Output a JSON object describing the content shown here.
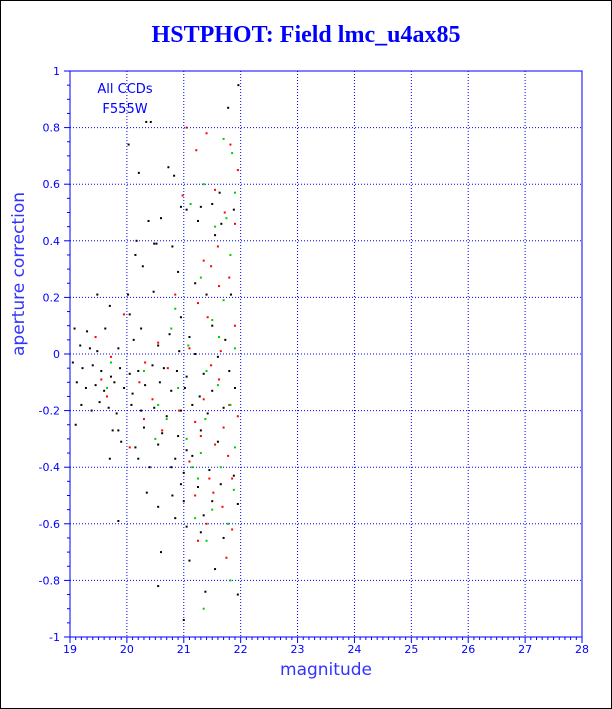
{
  "page": {
    "title": "HSTPHOT: Field lmc_u4ax85"
  },
  "chart_data": {
    "type": "scatter",
    "title": "HSTPHOT: Field lmc_u4ax85",
    "xlabel": "magnitude",
    "ylabel": "aperture correction",
    "xlim": [
      19,
      28
    ],
    "ylim": [
      -1,
      1
    ],
    "xticks": [
      "19",
      "20",
      "21",
      "22",
      "23",
      "24",
      "25",
      "26",
      "27",
      "28"
    ],
    "yticks": [
      "1",
      "0.8",
      "0.6",
      "0.4",
      "0.2",
      "0",
      "-0.2",
      "-0.4",
      "-0.6",
      "-0.8",
      "-1"
    ],
    "grid": "dotted",
    "annotation": [
      "All CCDs",
      "F555W"
    ],
    "colors": {
      "axis": "#0000ff",
      "grid": "#0000ff",
      "text": "#0000ff"
    },
    "series": [
      {
        "color": "#000000",
        "points": [
          [
            21.96,
            0.95
          ],
          [
            21.78,
            0.87
          ],
          [
            20.34,
            0.82
          ],
          [
            20.42,
            0.82
          ],
          [
            20.03,
            0.74
          ],
          [
            20.73,
            0.66
          ],
          [
            20.21,
            0.64
          ],
          [
            20.83,
            0.63
          ],
          [
            21.63,
            0.57
          ],
          [
            21.5,
            0.53
          ],
          [
            20.95,
            0.52
          ],
          [
            21.05,
            0.51
          ],
          [
            21.88,
            0.51
          ],
          [
            20.6,
            0.48
          ],
          [
            20.38,
            0.47
          ],
          [
            21.3,
            0.52
          ],
          [
            21.25,
            0.47
          ],
          [
            21.66,
            0.46
          ],
          [
            20.17,
            0.4
          ],
          [
            20.48,
            0.39
          ],
          [
            20.52,
            0.39
          ],
          [
            20.8,
            0.38
          ],
          [
            21.55,
            0.42
          ],
          [
            20.15,
            0.35
          ],
          [
            20.28,
            0.31
          ],
          [
            20.9,
            0.29
          ],
          [
            21.2,
            0.25
          ],
          [
            20.47,
            0.22
          ],
          [
            19.48,
            0.21
          ],
          [
            20.02,
            0.21
          ],
          [
            21.4,
            0.21
          ],
          [
            21.83,
            0.21
          ],
          [
            19.7,
            0.17
          ],
          [
            20.05,
            0.14
          ],
          [
            20.95,
            0.13
          ],
          [
            21.5,
            0.1
          ],
          [
            19.08,
            0.09
          ],
          [
            19.3,
            0.08
          ],
          [
            19.62,
            0.09
          ],
          [
            20.25,
            0.09
          ],
          [
            20.75,
            0.07
          ],
          [
            21.1,
            0.06
          ],
          [
            21.73,
            0.05
          ],
          [
            19.18,
            0.03
          ],
          [
            19.35,
            0.02
          ],
          [
            19.48,
            0.01
          ],
          [
            19.85,
            0.02
          ],
          [
            20.12,
            0.05
          ],
          [
            20.55,
            0.03
          ],
          [
            20.92,
            0.01
          ],
          [
            21.2,
            0.0
          ],
          [
            21.6,
            -0.01
          ],
          [
            19.05,
            -0.03
          ],
          [
            19.22,
            -0.05
          ],
          [
            19.4,
            -0.04
          ],
          [
            19.55,
            -0.06
          ],
          [
            19.72,
            -0.08
          ],
          [
            19.88,
            -0.05
          ],
          [
            20.05,
            -0.07
          ],
          [
            20.2,
            -0.06
          ],
          [
            20.45,
            -0.04
          ],
          [
            20.65,
            -0.05
          ],
          [
            20.88,
            -0.06
          ],
          [
            21.05,
            -0.08
          ],
          [
            21.35,
            -0.07
          ],
          [
            21.8,
            -0.06
          ],
          [
            19.12,
            -0.1
          ],
          [
            19.28,
            -0.12
          ],
          [
            19.45,
            -0.11
          ],
          [
            19.6,
            -0.13
          ],
          [
            19.78,
            -0.1
          ],
          [
            19.95,
            -0.12
          ],
          [
            20.1,
            -0.14
          ],
          [
            20.32,
            -0.11
          ],
          [
            20.58,
            -0.1
          ],
          [
            20.78,
            -0.13
          ],
          [
            21.02,
            -0.12
          ],
          [
            21.28,
            -0.15
          ],
          [
            21.5,
            -0.13
          ],
          [
            21.9,
            -0.12
          ],
          [
            19.2,
            -0.18
          ],
          [
            19.38,
            -0.2
          ],
          [
            19.52,
            -0.17
          ],
          [
            19.68,
            -0.19
          ],
          [
            19.82,
            -0.21
          ],
          [
            20.08,
            -0.18
          ],
          [
            20.25,
            -0.2
          ],
          [
            20.48,
            -0.19
          ],
          [
            20.7,
            -0.22
          ],
          [
            20.95,
            -0.2
          ],
          [
            21.15,
            -0.18
          ],
          [
            21.42,
            -0.21
          ],
          [
            21.7,
            -0.19
          ],
          [
            19.1,
            -0.25
          ],
          [
            19.75,
            -0.27
          ],
          [
            19.85,
            -0.27
          ],
          [
            20.3,
            -0.26
          ],
          [
            20.62,
            -0.28
          ],
          [
            20.9,
            -0.29
          ],
          [
            21.3,
            -0.27
          ],
          [
            19.9,
            -0.31
          ],
          [
            20.15,
            -0.33
          ],
          [
            20.55,
            -0.32
          ],
          [
            21.05,
            -0.34
          ],
          [
            21.6,
            -0.31
          ],
          [
            19.7,
            -0.37
          ],
          [
            20.2,
            -0.37
          ],
          [
            20.85,
            -0.37
          ],
          [
            21.15,
            -0.36
          ],
          [
            20.4,
            -0.4
          ],
          [
            20.78,
            -0.4
          ],
          [
            21.0,
            -0.42
          ],
          [
            21.45,
            -0.41
          ],
          [
            21.88,
            -0.43
          ],
          [
            20.95,
            -0.46
          ],
          [
            21.25,
            -0.47
          ],
          [
            21.65,
            -0.46
          ],
          [
            20.35,
            -0.49
          ],
          [
            20.8,
            -0.5
          ],
          [
            21.0,
            -0.52
          ],
          [
            21.5,
            -0.52
          ],
          [
            21.95,
            -0.53
          ],
          [
            20.55,
            -0.54
          ],
          [
            21.35,
            -0.57
          ],
          [
            20.85,
            -0.58
          ],
          [
            19.85,
            -0.59
          ],
          [
            21.05,
            -0.61
          ],
          [
            21.3,
            -0.63
          ],
          [
            21.7,
            -0.65
          ],
          [
            20.6,
            -0.7
          ],
          [
            21.1,
            -0.73
          ],
          [
            21.55,
            -0.76
          ],
          [
            20.55,
            -0.82
          ],
          [
            21.38,
            -0.84
          ],
          [
            21.95,
            -0.85
          ],
          [
            21.0,
            -0.94
          ]
        ]
      },
      {
        "color": "#ff0000",
        "points": [
          [
            21.05,
            0.8
          ],
          [
            21.4,
            0.78
          ],
          [
            21.82,
            0.74
          ],
          [
            21.22,
            0.72
          ],
          [
            21.95,
            0.65
          ],
          [
            21.55,
            0.58
          ],
          [
            20.98,
            0.56
          ],
          [
            21.72,
            0.5
          ],
          [
            21.9,
            0.46
          ],
          [
            21.6,
            0.38
          ],
          [
            21.35,
            0.33
          ],
          [
            21.48,
            0.31
          ],
          [
            21.8,
            0.27
          ],
          [
            21.62,
            0.24
          ],
          [
            20.85,
            0.21
          ],
          [
            21.25,
            0.18
          ],
          [
            19.95,
            0.14
          ],
          [
            21.42,
            0.13
          ],
          [
            21.9,
            0.1
          ],
          [
            19.45,
            0.06
          ],
          [
            20.55,
            0.04
          ],
          [
            21.1,
            0.02
          ],
          [
            21.65,
            0.01
          ],
          [
            19.72,
            -0.01
          ],
          [
            20.32,
            -0.03
          ],
          [
            20.72,
            -0.05
          ],
          [
            21.48,
            -0.04
          ],
          [
            19.55,
            -0.09
          ],
          [
            20.22,
            -0.1
          ],
          [
            21.62,
            -0.09
          ],
          [
            19.65,
            -0.15
          ],
          [
            20.45,
            -0.16
          ],
          [
            21.35,
            -0.16
          ],
          [
            21.8,
            -0.18
          ],
          [
            20.92,
            -0.2
          ],
          [
            20.3,
            -0.23
          ],
          [
            21.2,
            -0.24
          ],
          [
            21.95,
            -0.22
          ],
          [
            20.62,
            -0.27
          ],
          [
            21.7,
            -0.26
          ],
          [
            21.3,
            -0.29
          ],
          [
            20.05,
            -0.33
          ],
          [
            21.55,
            -0.32
          ],
          [
            21.1,
            -0.38
          ],
          [
            21.78,
            -0.36
          ],
          [
            21.45,
            -0.44
          ],
          [
            21.85,
            -0.44
          ],
          [
            21.2,
            -0.5
          ],
          [
            21.52,
            -0.49
          ],
          [
            21.68,
            -0.54
          ],
          [
            21.4,
            -0.6
          ],
          [
            21.85,
            -0.62
          ],
          [
            21.25,
            -0.66
          ],
          [
            21.75,
            -0.72
          ]
        ]
      },
      {
        "color": "#00cc00",
        "points": [
          [
            21.7,
            0.76
          ],
          [
            21.85,
            0.71
          ],
          [
            21.35,
            0.6
          ],
          [
            21.9,
            0.57
          ],
          [
            21.12,
            0.53
          ],
          [
            21.75,
            0.48
          ],
          [
            21.55,
            0.45
          ],
          [
            21.82,
            0.35
          ],
          [
            21.3,
            0.27
          ],
          [
            21.7,
            0.19
          ],
          [
            20.85,
            0.16
          ],
          [
            21.5,
            0.12
          ],
          [
            20.78,
            0.09
          ],
          [
            21.62,
            0.06
          ],
          [
            21.08,
            0.03
          ],
          [
            21.9,
            0.02
          ],
          [
            19.72,
            -0.03
          ],
          [
            20.3,
            -0.06
          ],
          [
            21.4,
            -0.06
          ],
          [
            19.65,
            -0.12
          ],
          [
            20.9,
            -0.12
          ],
          [
            21.6,
            -0.11
          ],
          [
            20.55,
            -0.18
          ],
          [
            21.82,
            -0.18
          ],
          [
            20.7,
            -0.23
          ],
          [
            21.38,
            -0.23
          ],
          [
            20.5,
            -0.3
          ],
          [
            21.05,
            -0.3
          ],
          [
            21.3,
            -0.35
          ],
          [
            21.9,
            -0.33
          ],
          [
            21.15,
            -0.4
          ],
          [
            21.65,
            -0.4
          ],
          [
            21.25,
            -0.44
          ],
          [
            21.88,
            -0.48
          ],
          [
            21.5,
            -0.55
          ],
          [
            21.2,
            -0.58
          ],
          [
            21.78,
            -0.6
          ],
          [
            21.4,
            -0.66
          ],
          [
            21.82,
            -0.8
          ],
          [
            21.35,
            -0.9
          ]
        ]
      }
    ]
  }
}
